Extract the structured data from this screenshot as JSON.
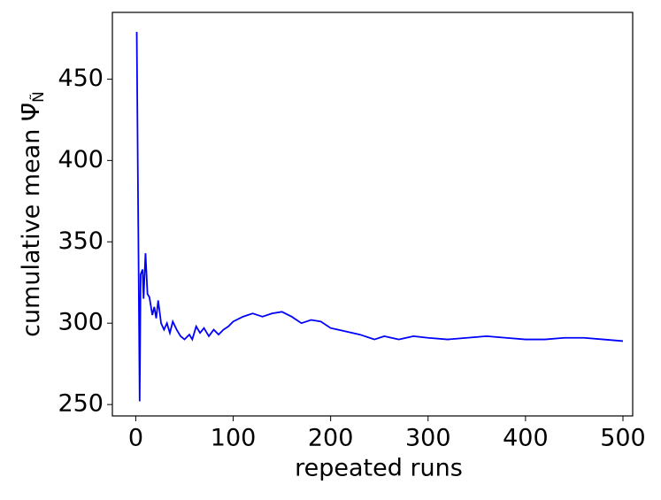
{
  "chart_data": {
    "type": "line",
    "x_label": "repeated runs",
    "y_label": "cumulative mean Ψ̄",
    "y_label_subscript": "Ñ",
    "x": [
      1,
      4,
      5,
      7,
      8,
      10,
      12,
      14,
      17,
      19,
      21,
      23,
      26,
      29,
      32,
      35,
      38,
      42,
      46,
      50,
      55,
      58,
      62,
      66,
      70,
      75,
      80,
      85,
      90,
      95,
      100,
      110,
      120,
      130,
      140,
      150,
      160,
      170,
      180,
      190,
      200,
      215,
      230,
      245,
      255,
      270,
      285,
      300,
      320,
      340,
      360,
      380,
      400,
      420,
      440,
      460,
      480,
      500
    ],
    "series": [
      {
        "name": "cumulative mean",
        "color": "#0000ff",
        "values": [
          479,
          252,
          330,
          333,
          315,
          343,
          318,
          316,
          305,
          310,
          303,
          314,
          300,
          296,
          300,
          294,
          301,
          296,
          292,
          290,
          293,
          290,
          298,
          294,
          297,
          292,
          296,
          293,
          296,
          298,
          301,
          304,
          306,
          304,
          306,
          307,
          304,
          300,
          302,
          301,
          297,
          295,
          293,
          290,
          292,
          290,
          292,
          291,
          290,
          291,
          292,
          291,
          290,
          290,
          291,
          291,
          290,
          289
        ]
      }
    ],
    "xlim": [
      -24,
      510
    ],
    "ylim": [
      243,
      491
    ],
    "xticks": [
      0,
      100,
      200,
      300,
      400,
      500
    ],
    "yticks": [
      250,
      300,
      350,
      400,
      450
    ]
  }
}
